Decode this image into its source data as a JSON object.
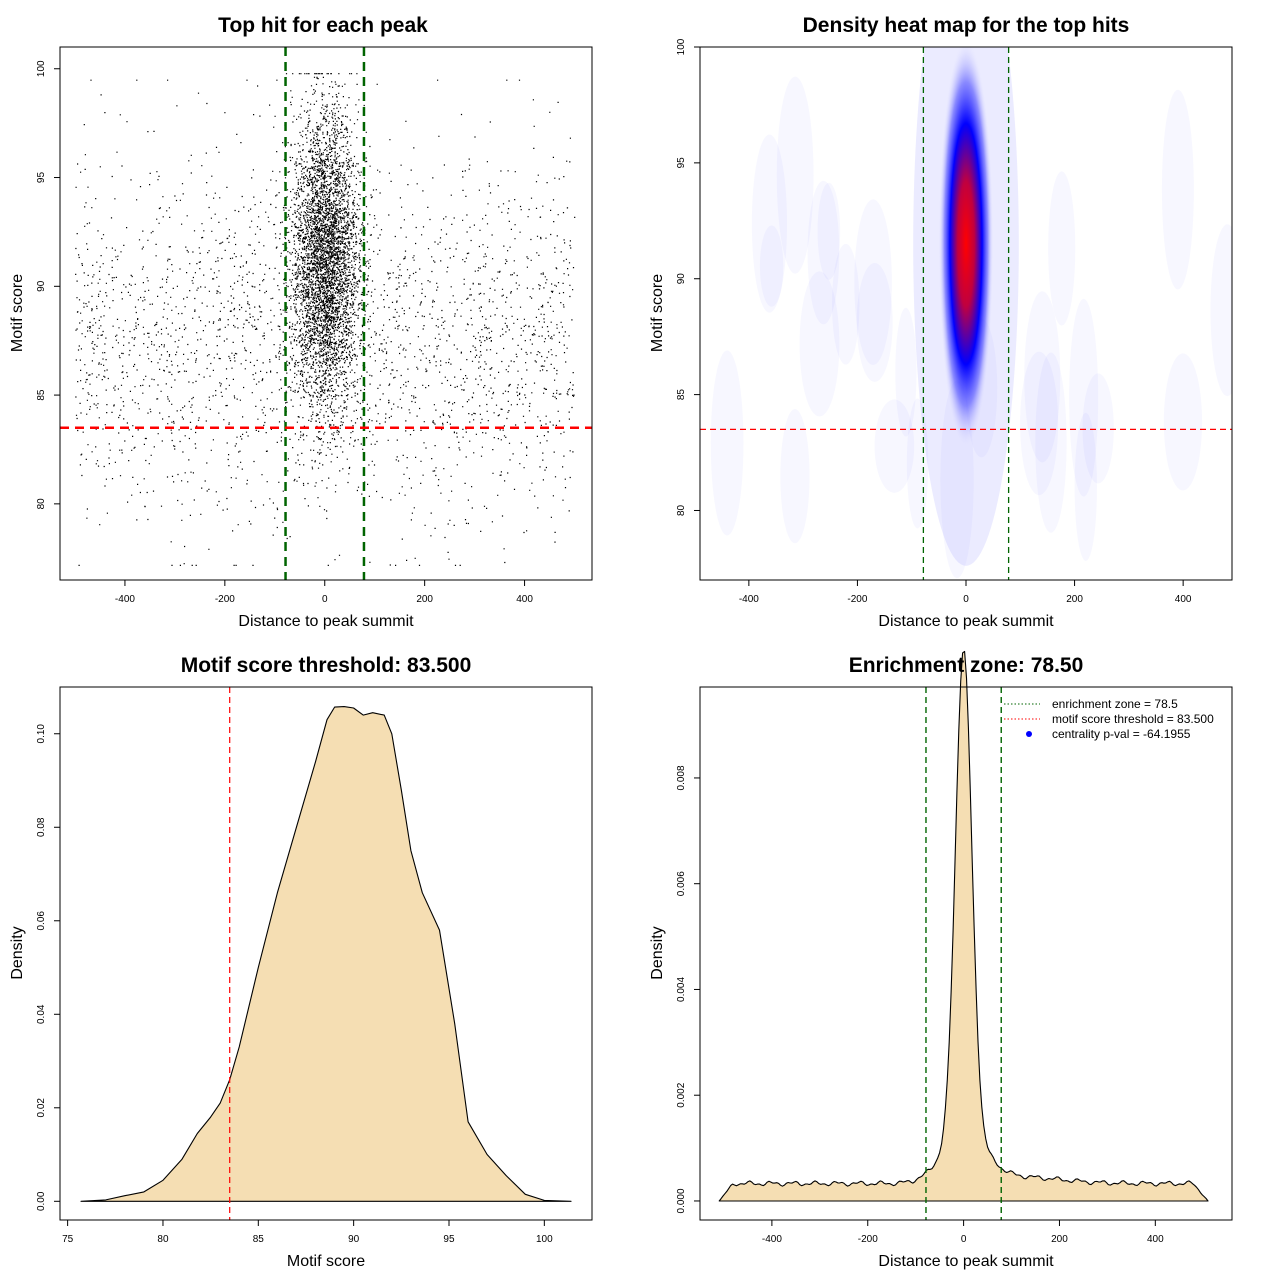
{
  "chart_data": [
    {
      "id": "scatter",
      "type": "scatter",
      "title": "Top hit for each peak",
      "xlabel": "Distance to peak summit",
      "ylabel": "Motif score",
      "xlim": [
        -530,
        535
      ],
      "ylim": [
        76.5,
        101
      ],
      "xticks": [
        -400,
        -200,
        0,
        200,
        400
      ],
      "yticks": [
        80,
        85,
        90,
        95,
        100
      ],
      "vlines": [
        -78.5,
        78.5
      ],
      "hline": 83.5,
      "point_color": "#000000",
      "enrichment_color": "#006400",
      "threshold_color": "#ff0000",
      "background_model": {
        "x_range": [
          -500,
          500
        ],
        "score_mean": 87.5,
        "score_sd": 4.2,
        "count": 2500
      },
      "central_model": {
        "x_mean": 0,
        "x_sd": 33,
        "score_mean": 91.2,
        "score_sd": 3.4,
        "count": 4500
      }
    },
    {
      "id": "heatmap",
      "type": "heatmap",
      "title": "Density heat map for the top hits",
      "xlabel": "Distance to peak summit",
      "ylabel": "Motif score",
      "xlim": [
        -490,
        490
      ],
      "ylim": [
        77,
        100
      ],
      "xticks": [
        -400,
        -200,
        0,
        200,
        400
      ],
      "yticks": [
        80,
        85,
        90,
        95,
        100
      ],
      "vlines": [
        -78.5,
        78.5
      ],
      "hline": 83.5,
      "colors": [
        "#ffffff",
        "#0000ff",
        "#ff0000"
      ],
      "peak": {
        "x": 0,
        "y": 91.5,
        "sd_x": 16,
        "sd_y": 3.2
      },
      "enrichment_color": "#006400",
      "threshold_color": "#ff0000"
    },
    {
      "id": "score-density",
      "type": "area",
      "title": "Motif score threshold: 83.500",
      "xlabel": "Motif score",
      "ylabel": "Density",
      "xlim": [
        74.6,
        102.5
      ],
      "ylim": [
        -0.004,
        0.11
      ],
      "xticks": [
        75,
        80,
        85,
        90,
        95,
        100
      ],
      "yticks": [
        0.0,
        0.02,
        0.04,
        0.06,
        0.08,
        0.1
      ],
      "ytick_labels": [
        "0.00",
        "0.02",
        "0.04",
        "0.06",
        "0.08",
        "0.10"
      ],
      "x": [
        75.7,
        77,
        78,
        79,
        80,
        81,
        81.8,
        82.5,
        83,
        83.5,
        84,
        85,
        86,
        87,
        88,
        88.6,
        89,
        89.5,
        90,
        90.5,
        91,
        91.6,
        92,
        92.5,
        93,
        93.6,
        94.5,
        95.3,
        96,
        97,
        98,
        99,
        100,
        101.4
      ],
      "y": [
        0.0,
        0.0003,
        0.0012,
        0.002,
        0.0045,
        0.009,
        0.0145,
        0.018,
        0.021,
        0.026,
        0.033,
        0.05,
        0.066,
        0.08,
        0.094,
        0.103,
        0.1057,
        0.1058,
        0.1055,
        0.104,
        0.1045,
        0.104,
        0.1,
        0.088,
        0.075,
        0.066,
        0.058,
        0.038,
        0.017,
        0.01,
        0.0055,
        0.0015,
        0.0002,
        0.0
      ],
      "vline": 83.5,
      "fill": "#f5deb3",
      "threshold_color": "#ff0000"
    },
    {
      "id": "distance-density",
      "type": "area",
      "title": "Enrichment zone: 78.50",
      "xlabel": "Distance to peak summit",
      "ylabel": "Density",
      "xlim": [
        -550,
        560
      ],
      "ylim": [
        -0.00036,
        0.00972
      ],
      "xticks": [
        -400,
        -200,
        0,
        200,
        400
      ],
      "yticks": [
        0.0,
        0.002,
        0.004,
        0.006,
        0.008
      ],
      "ytick_labels": [
        "0.000",
        "0.002",
        "0.004",
        "0.006",
        "0.008"
      ],
      "baseline": 0.00033,
      "peak_height": 0.0092,
      "peak_sd": 17,
      "right_shoulder": 0.00012,
      "support": [
        -510,
        510
      ],
      "vlines": [
        -78.5,
        78.5
      ],
      "fill": "#f5deb3",
      "enrichment_color": "#006400",
      "threshold_color": "#ff0000",
      "centrality_color": "#0000ff",
      "legend": [
        {
          "style": "dotted",
          "color": "#006400",
          "label": "enrichment zone = 78.5"
        },
        {
          "style": "dotted",
          "color": "#ff0000",
          "label": "motif score threshold = 83.500"
        },
        {
          "style": "point",
          "color": "#0000ff",
          "label": "centrality p-val = -64.1955"
        }
      ]
    }
  ]
}
